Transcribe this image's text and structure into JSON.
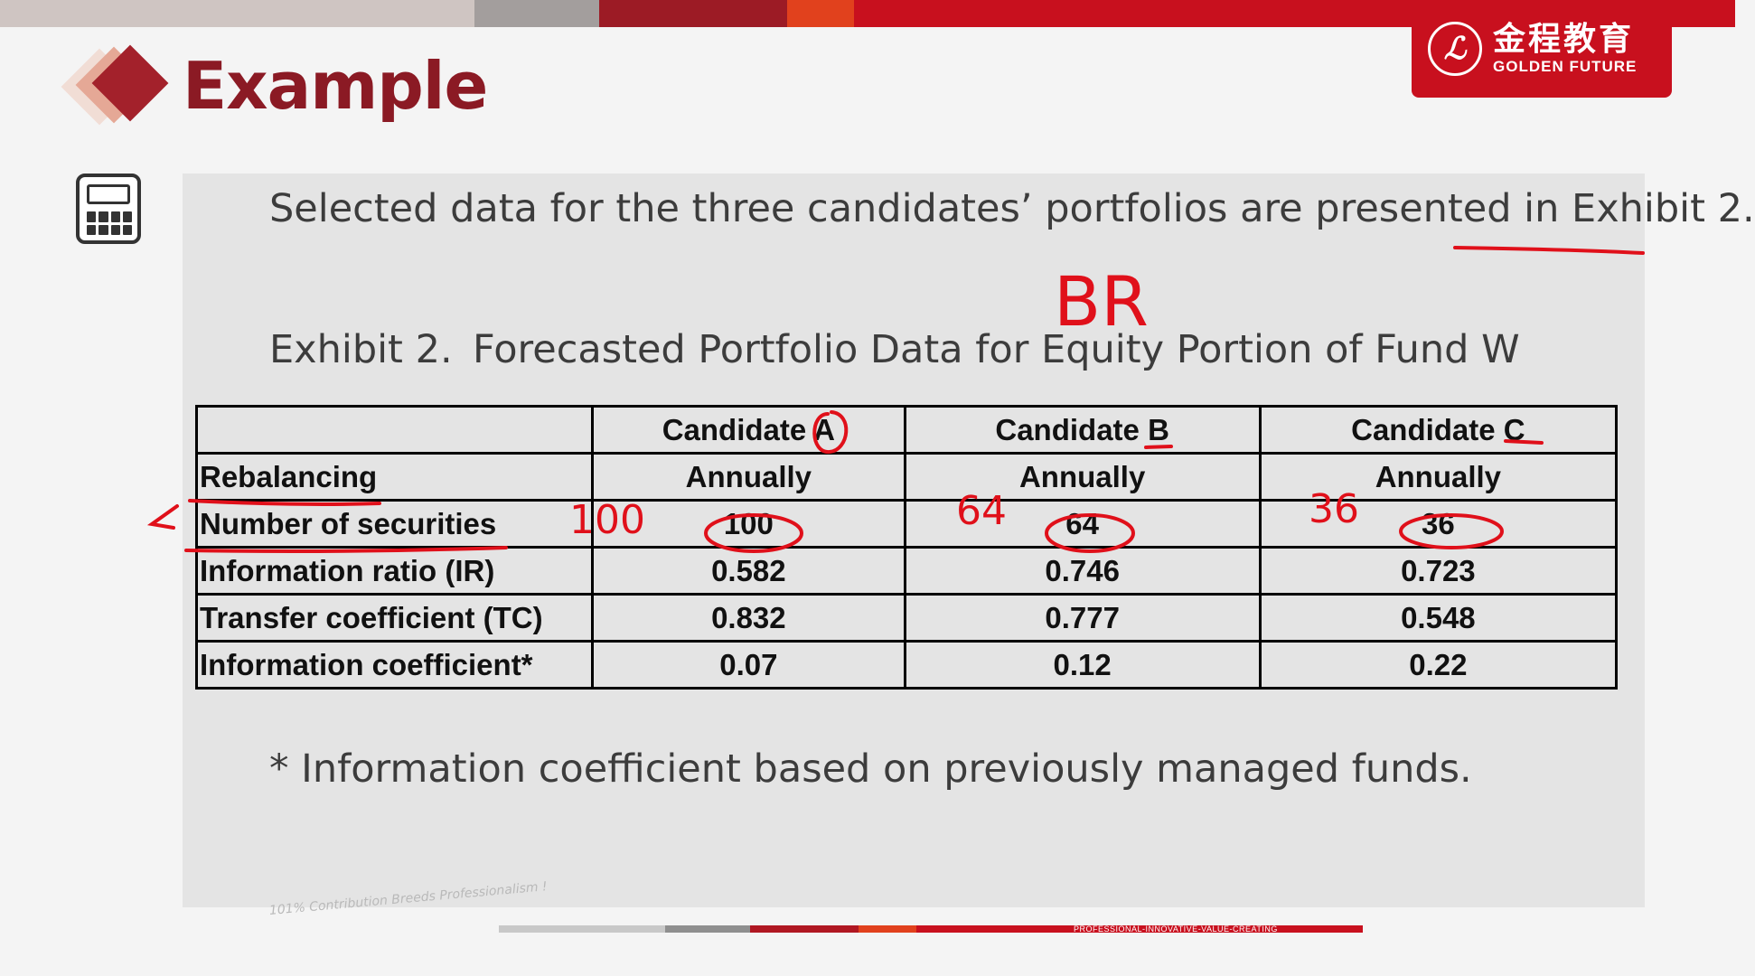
{
  "colors": {
    "brand_red": "#c8101e",
    "title_maroon": "#8b1a24",
    "annotation_red": "#e0101a",
    "top_bar": [
      "#cfc5c2",
      "#a39e9d",
      "#9c1b25",
      "#e1411d",
      "#c8101e"
    ]
  },
  "logo": {
    "seal_glyph": "ℒ",
    "chinese_name": "金程教育",
    "english_name": "GOLDEN FUTURE"
  },
  "header": {
    "title": "Example",
    "icon": "calculator-icon"
  },
  "content": {
    "intro": "Selected data for the three candidates’ portfolios are presented in Exhibit 2.",
    "exhibit_number": "Exhibit 2.",
    "exhibit_title": "Forecasted Portfolio Data for Equity Portion of Fund W",
    "table": {
      "columns": [
        "Candidate A",
        "Candidate B",
        "Candidate C"
      ],
      "rows": [
        {
          "label": "Rebalancing",
          "values": [
            "Annually",
            "Annually",
            "Annually"
          ]
        },
        {
          "label": "Number of securities",
          "values": [
            "100",
            "64",
            "36"
          ]
        },
        {
          "label": "Information ratio (IR)",
          "values": [
            "0.582",
            "0.746",
            "0.723"
          ]
        },
        {
          "label": "Transfer coefficient (TC)",
          "values": [
            "0.832",
            "0.777",
            "0.548"
          ]
        },
        {
          "label": "Information coefficient*",
          "values": [
            "0.07",
            "0.12",
            "0.22"
          ]
        }
      ]
    },
    "footnote": "* Information coefficient based on previously managed funds."
  },
  "annotations": {
    "br": "BR",
    "a_100": "100",
    "b_64": "64",
    "c_36": "36"
  },
  "footer": {
    "tagline": "101% Contribution Breeds Professionalism !",
    "slogan": "PROFESSIONAL-INNOVATIVE-VALUE-CREATING"
  }
}
